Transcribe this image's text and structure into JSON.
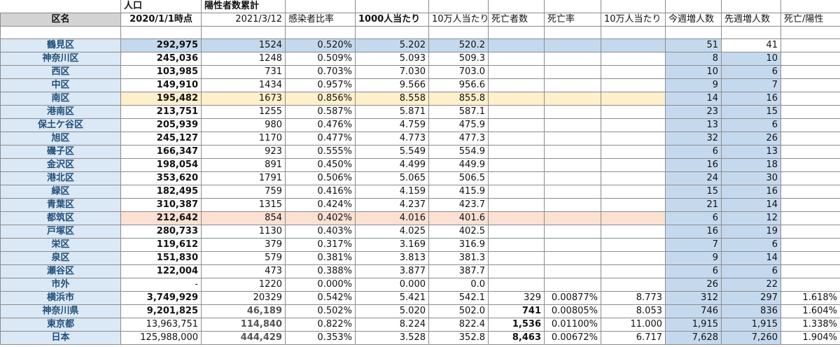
{
  "sheet": {
    "header_row1": {
      "population": "人口",
      "positives_cumulative": "陽性者数累計"
    },
    "header_row2": {
      "ward_name": "区名",
      "population_date": "2020/1/1時点",
      "positives_date": "2021/3/12",
      "infection_ratio": "感染者比率",
      "per_1000": "1000人当たり",
      "per_100k": "10万人当たり",
      "deaths": "死亡者数",
      "death_rate": "死亡率",
      "deaths_per_100k": "10万人当たり",
      "this_week_increase": "今週増人数",
      "last_week_increase": "先週増人数",
      "death_positive_ratio": "死亡/陽性"
    },
    "rows": [
      {
        "name": "鶴見区",
        "population": "292,975",
        "positives": "1524",
        "ratio": "0.520%",
        "per1000": "5.202",
        "per100k": "520.2",
        "deaths": "",
        "death_rate": "",
        "deaths_per100k": "",
        "this_week": "51",
        "last_week": "41",
        "death_pos": "",
        "highlight": "blue"
      },
      {
        "name": "神奈川区",
        "population": "245,036",
        "positives": "1248",
        "ratio": "0.509%",
        "per1000": "5.093",
        "per100k": "509.3",
        "deaths": "",
        "death_rate": "",
        "deaths_per100k": "",
        "this_week": "8",
        "last_week": "10",
        "death_pos": "",
        "highlight": ""
      },
      {
        "name": "西区",
        "population": "103,985",
        "positives": "731",
        "ratio": "0.703%",
        "per1000": "7.030",
        "per100k": "703.0",
        "deaths": "",
        "death_rate": "",
        "deaths_per100k": "",
        "this_week": "10",
        "last_week": "6",
        "death_pos": "",
        "highlight": ""
      },
      {
        "name": "中区",
        "population": "149,910",
        "positives": "1434",
        "ratio": "0.957%",
        "per1000": "9.566",
        "per100k": "956.6",
        "deaths": "",
        "death_rate": "",
        "deaths_per100k": "",
        "this_week": "9",
        "last_week": "7",
        "death_pos": "",
        "highlight": ""
      },
      {
        "name": "南区",
        "population": "195,482",
        "positives": "1673",
        "ratio": "0.856%",
        "per1000": "8.558",
        "per100k": "855.8",
        "deaths": "",
        "death_rate": "",
        "deaths_per100k": "",
        "this_week": "14",
        "last_week": "16",
        "death_pos": "",
        "highlight": "yellow"
      },
      {
        "name": "港南区",
        "population": "213,751",
        "positives": "1255",
        "ratio": "0.587%",
        "per1000": "5.871",
        "per100k": "587.1",
        "deaths": "",
        "death_rate": "",
        "deaths_per100k": "",
        "this_week": "23",
        "last_week": "15",
        "death_pos": "",
        "highlight": ""
      },
      {
        "name": "保土ケ谷区",
        "population": "205,939",
        "positives": "980",
        "ratio": "0.476%",
        "per1000": "4.759",
        "per100k": "475.9",
        "deaths": "",
        "death_rate": "",
        "deaths_per100k": "",
        "this_week": "13",
        "last_week": "6",
        "death_pos": "",
        "highlight": ""
      },
      {
        "name": "旭区",
        "population": "245,127",
        "positives": "1170",
        "ratio": "0.477%",
        "per1000": "4.773",
        "per100k": "477.3",
        "deaths": "",
        "death_rate": "",
        "deaths_per100k": "",
        "this_week": "32",
        "last_week": "26",
        "death_pos": "",
        "highlight": ""
      },
      {
        "name": "磯子区",
        "population": "166,347",
        "positives": "923",
        "ratio": "0.555%",
        "per1000": "5.549",
        "per100k": "554.9",
        "deaths": "",
        "death_rate": "",
        "deaths_per100k": "",
        "this_week": "6",
        "last_week": "13",
        "death_pos": "",
        "highlight": ""
      },
      {
        "name": "金沢区",
        "population": "198,054",
        "positives": "891",
        "ratio": "0.450%",
        "per1000": "4.499",
        "per100k": "449.9",
        "deaths": "",
        "death_rate": "",
        "deaths_per100k": "",
        "this_week": "16",
        "last_week": "18",
        "death_pos": "",
        "highlight": ""
      },
      {
        "name": "港北区",
        "population": "353,620",
        "positives": "1791",
        "ratio": "0.506%",
        "per1000": "5.065",
        "per100k": "506.5",
        "deaths": "",
        "death_rate": "",
        "deaths_per100k": "",
        "this_week": "24",
        "last_week": "30",
        "death_pos": "",
        "highlight": ""
      },
      {
        "name": "緑区",
        "population": "182,495",
        "positives": "759",
        "ratio": "0.416%",
        "per1000": "4.159",
        "per100k": "415.9",
        "deaths": "",
        "death_rate": "",
        "deaths_per100k": "",
        "this_week": "15",
        "last_week": "16",
        "death_pos": "",
        "highlight": ""
      },
      {
        "name": "青葉区",
        "population": "310,387",
        "positives": "1315",
        "ratio": "0.424%",
        "per1000": "4.237",
        "per100k": "423.7",
        "deaths": "",
        "death_rate": "",
        "deaths_per100k": "",
        "this_week": "21",
        "last_week": "14",
        "death_pos": "",
        "highlight": ""
      },
      {
        "name": "都筑区",
        "population": "212,642",
        "positives": "854",
        "ratio": "0.402%",
        "per1000": "4.016",
        "per100k": "401.6",
        "deaths": "",
        "death_rate": "",
        "deaths_per100k": "",
        "this_week": "6",
        "last_week": "12",
        "death_pos": "",
        "highlight": "peach"
      },
      {
        "name": "戸塚区",
        "population": "280,733",
        "positives": "1130",
        "ratio": "0.403%",
        "per1000": "4.025",
        "per100k": "402.5",
        "deaths": "",
        "death_rate": "",
        "deaths_per100k": "",
        "this_week": "16",
        "last_week": "19",
        "death_pos": "",
        "highlight": ""
      },
      {
        "name": "栄区",
        "population": "119,612",
        "positives": "379",
        "ratio": "0.317%",
        "per1000": "3.169",
        "per100k": "316.9",
        "deaths": "",
        "death_rate": "",
        "deaths_per100k": "",
        "this_week": "7",
        "last_week": "6",
        "death_pos": "",
        "highlight": ""
      },
      {
        "name": "泉区",
        "population": "151,830",
        "positives": "579",
        "ratio": "0.381%",
        "per1000": "3.813",
        "per100k": "381.3",
        "deaths": "",
        "death_rate": "",
        "deaths_per100k": "",
        "this_week": "9",
        "last_week": "14",
        "death_pos": "",
        "highlight": ""
      },
      {
        "name": "瀬谷区",
        "population": "122,004",
        "positives": "473",
        "ratio": "0.388%",
        "per1000": "3.877",
        "per100k": "387.7",
        "deaths": "",
        "death_rate": "",
        "deaths_per100k": "",
        "this_week": "6",
        "last_week": "6",
        "death_pos": "",
        "highlight": ""
      },
      {
        "name": "市外",
        "population": "-",
        "positives": "1220",
        "ratio": "0.000%",
        "per1000": "0.000",
        "per100k": "0.0",
        "deaths": "",
        "death_rate": "",
        "deaths_per100k": "",
        "this_week": "26",
        "last_week": "22",
        "death_pos": "",
        "highlight": ""
      },
      {
        "name": "横浜市",
        "population": "3,749,929",
        "positives": "20329",
        "ratio": "0.542%",
        "per1000": "5.421",
        "per100k": "542.1",
        "deaths": "329",
        "death_rate": "0.00877%",
        "deaths_per100k": "8.773",
        "this_week": "312",
        "last_week": "297",
        "death_pos": "1.618%",
        "highlight": ""
      },
      {
        "name": "神奈川県",
        "population": "9,201,825",
        "positives": "46,189",
        "ratio": "0.502%",
        "per1000": "5.020",
        "per100k": "502.0",
        "deaths": "741",
        "death_rate": "0.00805%",
        "deaths_per100k": "8.053",
        "this_week": "746",
        "last_week": "836",
        "death_pos": "1.604%",
        "highlight": ""
      },
      {
        "name": "東京都",
        "population": "13,963,751",
        "positives": "114,840",
        "ratio": "0.822%",
        "per1000": "8.224",
        "per100k": "822.4",
        "deaths": "1,536",
        "death_rate": "0.01100%",
        "deaths_per100k": "11.000",
        "this_week": "1,915",
        "last_week": "1,915",
        "death_pos": "1.338%",
        "highlight": ""
      },
      {
        "name": "日本",
        "population": "125,988,000",
        "positives": "444,429",
        "ratio": "0.353%",
        "per1000": "3.528",
        "per100k": "352.8",
        "deaths": "8,463",
        "death_rate": "0.00672%",
        "deaths_per100k": "6.717",
        "this_week": "7,628",
        "last_week": "7,260",
        "death_pos": "1.904%",
        "highlight": ""
      }
    ]
  },
  "colors": {
    "name_column_bg": "#dbe8f6",
    "name_text": "#1f4e79",
    "weekly_blue": "#c5d9ee",
    "highlight_yellow": "#fff0cc",
    "highlight_peach": "#fbe1d2",
    "header_gray": "#d3d3d3"
  }
}
